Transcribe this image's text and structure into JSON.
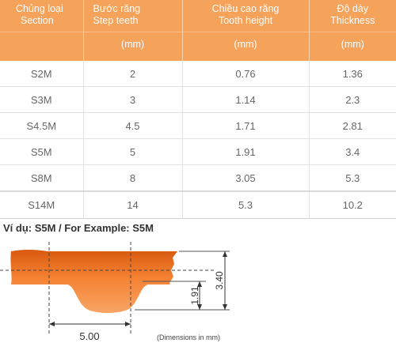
{
  "table": {
    "headers": [
      {
        "vi": "Chủng loại",
        "en": "Section",
        "unit": ""
      },
      {
        "vi": "Bước răng",
        "en": "Step teeth",
        "unit": "(mm)"
      },
      {
        "vi": "Chiều cao răng",
        "en": "Tooth height",
        "unit": "(mm)"
      },
      {
        "vi": "Độ dày",
        "en": "Thickness",
        "unit": "(mm)"
      }
    ],
    "rows": [
      [
        "S2M",
        "2",
        "0.76",
        "1.36"
      ],
      [
        "S3M",
        "3",
        "1.14",
        "2.3"
      ],
      [
        "S4.5M",
        "4.5",
        "1.71",
        "2.81"
      ],
      [
        "S5M",
        "5",
        "1.91",
        "3.4"
      ],
      [
        "S8M",
        "8",
        "3.05",
        "5.3"
      ],
      [
        "S14M",
        "14",
        "5.3",
        "10.2"
      ]
    ]
  },
  "example": {
    "label": "Ví dụ: S5M / For Example: S5M",
    "pitch": "5.00",
    "tooth_height": "1.91",
    "thickness": "3.40",
    "note": "(Dimensions in mm)",
    "belt_color": "#f07a2a"
  }
}
